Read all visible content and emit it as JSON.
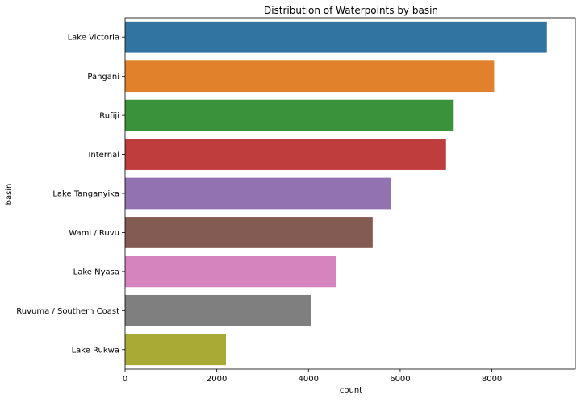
{
  "chart_data": {
    "type": "bar",
    "orientation": "horizontal",
    "title": "Distribution of Waterpoints by basin",
    "xlabel": "count",
    "ylabel": "basin",
    "categories": [
      "Lake Victoria",
      "Pangani",
      "Rufiji",
      "Internal",
      "Lake Tanganyika",
      "Wami / Ruvu",
      "Lake Nyasa",
      "Ruvuma / Southern Coast",
      "Lake Rukwa"
    ],
    "values": [
      9200,
      8050,
      7150,
      7000,
      5800,
      5400,
      4600,
      4060,
      2200
    ],
    "colors": [
      "#3274a1",
      "#e1812c",
      "#3a923a",
      "#c03d3e",
      "#9372b2",
      "#845b53",
      "#d684bd",
      "#7f7f7f",
      "#a9aa35"
    ],
    "xlim": [
      0,
      9820
    ],
    "xticks": [
      0,
      2000,
      4000,
      6000,
      8000
    ],
    "grid": false,
    "legend": "none"
  }
}
